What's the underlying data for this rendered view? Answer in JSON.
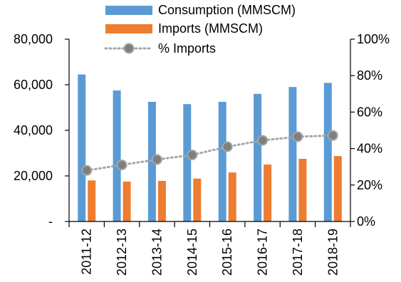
{
  "chart_data": {
    "type": "bar",
    "categories": [
      "2011-12",
      "2012-13",
      "2013-14",
      "2014-15",
      "2015-16",
      "2016-17",
      "2017-18",
      "2018-19"
    ],
    "series": [
      {
        "name": "Consumption (MMSCM)",
        "type": "bar",
        "axis": "left",
        "color": "#5b9bd5",
        "values": [
          64500,
          57500,
          52500,
          51500,
          52500,
          56000,
          59000,
          60800
        ]
      },
      {
        "name": "Imports (MMSCM)",
        "type": "bar",
        "axis": "left",
        "color": "#ed7d31",
        "values": [
          18000,
          17500,
          17800,
          18800,
          21500,
          25000,
          27500,
          28700
        ]
      },
      {
        "name": "% Imports",
        "type": "line",
        "axis": "right",
        "color": "#a5a5a5",
        "marker_color": "#7f7f7f",
        "values": [
          28,
          31,
          34,
          36.5,
          41,
          44.5,
          46.5,
          47.2
        ]
      }
    ],
    "left_axis": {
      "min": 0,
      "max": 80000,
      "ticks": [
        0,
        20000,
        40000,
        60000,
        80000
      ],
      "tick_labels": [
        "-",
        "20,000",
        "40,000",
        "60,000",
        "80,000"
      ]
    },
    "right_axis": {
      "min": 0,
      "max": 100,
      "ticks": [
        0,
        20,
        40,
        60,
        80,
        100
      ],
      "tick_labels": [
        "0%",
        "20%",
        "40%",
        "60%",
        "80%",
        "100%"
      ]
    },
    "legend_position": "top-center",
    "grid": false,
    "x_label_rotation": "vertical"
  }
}
